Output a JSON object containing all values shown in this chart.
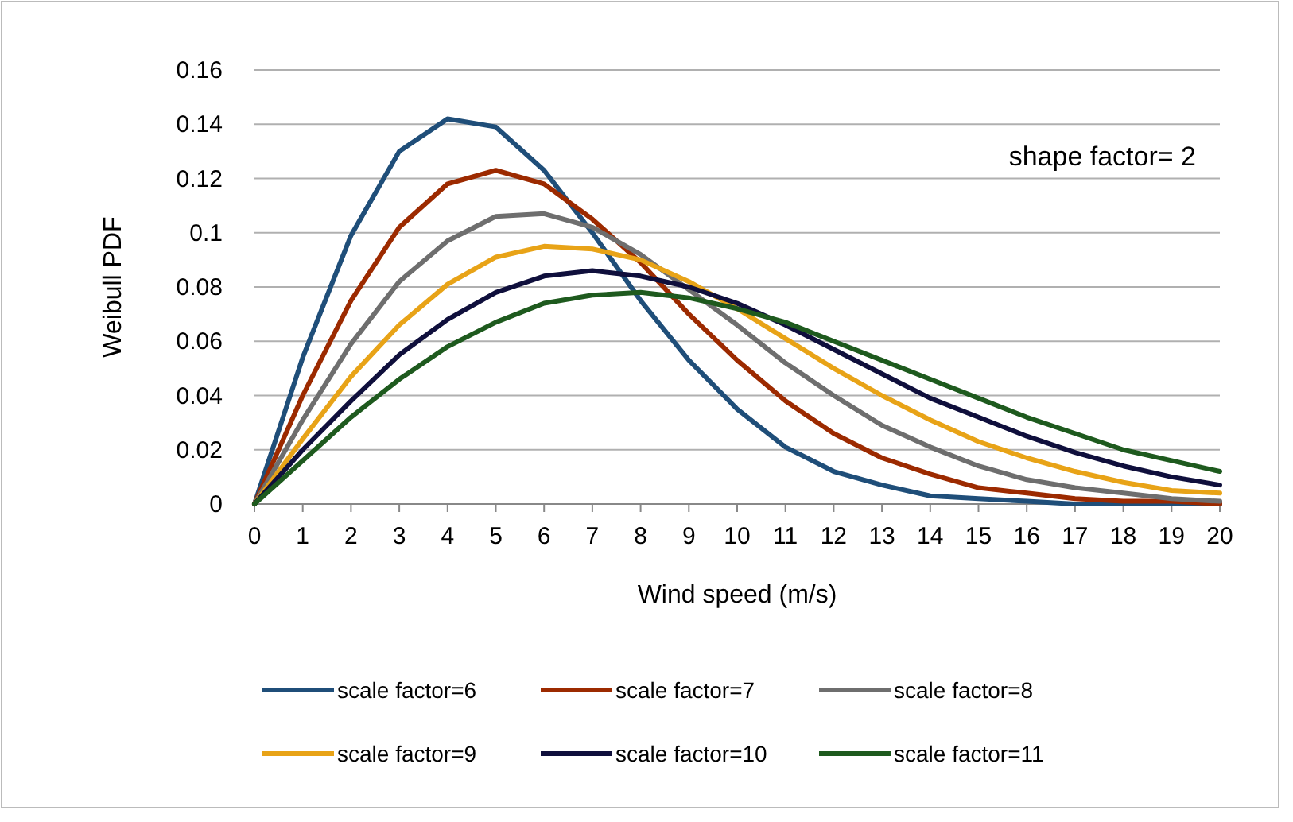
{
  "chart_data": {
    "type": "line",
    "xlabel": "Wind speed (m/s)",
    "ylabel": "Weibull PDF",
    "annotations": [
      "shape factor= 2"
    ],
    "x": [
      0,
      1,
      2,
      3,
      4,
      5,
      6,
      7,
      8,
      9,
      10,
      11,
      12,
      13,
      14,
      15,
      16,
      17,
      18,
      19,
      20
    ],
    "xlim": [
      0,
      20
    ],
    "xticks": [
      0,
      1,
      2,
      3,
      4,
      5,
      6,
      7,
      8,
      9,
      10,
      11,
      12,
      13,
      14,
      15,
      16,
      17,
      18,
      19,
      20
    ],
    "ylim": [
      0,
      0.16
    ],
    "yticks": [
      0,
      0.02,
      0.04,
      0.06,
      0.08,
      0.1,
      0.12,
      0.14,
      0.16
    ],
    "grid": "y",
    "legend": "bottom",
    "marker": "none",
    "line_style": "solid",
    "series": [
      {
        "name": "scale factor=6",
        "color": "#1f4e79",
        "values": [
          0,
          0.054,
          0.099,
          0.13,
          0.142,
          0.139,
          0.123,
          0.1,
          0.075,
          0.053,
          0.035,
          0.021,
          0.012,
          0.007,
          0.003,
          0.002,
          0.001,
          0,
          0,
          0,
          0
        ]
      },
      {
        "name": "scale factor=7",
        "color": "#9c2a00",
        "values": [
          0,
          0.04,
          0.075,
          0.102,
          0.118,
          0.123,
          0.118,
          0.105,
          0.089,
          0.07,
          0.053,
          0.038,
          0.026,
          0.017,
          0.011,
          0.006,
          0.004,
          0.002,
          0.001,
          0.001,
          0
        ]
      },
      {
        "name": "scale factor=8",
        "color": "#6e6e6e",
        "values": [
          0,
          0.031,
          0.059,
          0.082,
          0.097,
          0.106,
          0.107,
          0.102,
          0.092,
          0.079,
          0.066,
          0.052,
          0.04,
          0.029,
          0.021,
          0.014,
          0.009,
          0.006,
          0.004,
          0.002,
          0.001
        ]
      },
      {
        "name": "scale factor=9",
        "color": "#e8a317",
        "values": [
          0,
          0.024,
          0.047,
          0.066,
          0.081,
          0.091,
          0.095,
          0.094,
          0.09,
          0.082,
          0.072,
          0.061,
          0.05,
          0.04,
          0.031,
          0.023,
          0.017,
          0.012,
          0.008,
          0.005,
          0.004
        ]
      },
      {
        "name": "scale factor=10",
        "color": "#0f0f3c",
        "values": [
          0,
          0.02,
          0.038,
          0.055,
          0.068,
          0.078,
          0.084,
          0.086,
          0.084,
          0.08,
          0.074,
          0.066,
          0.057,
          0.048,
          0.039,
          0.032,
          0.025,
          0.019,
          0.014,
          0.01,
          0.007
        ]
      },
      {
        "name": "scale factor=11",
        "color": "#1e5a1e",
        "values": [
          0,
          0.016,
          0.032,
          0.046,
          0.058,
          0.067,
          0.074,
          0.077,
          0.078,
          0.076,
          0.072,
          0.067,
          0.06,
          0.053,
          0.046,
          0.039,
          0.032,
          0.026,
          0.02,
          0.016,
          0.012
        ]
      }
    ]
  }
}
